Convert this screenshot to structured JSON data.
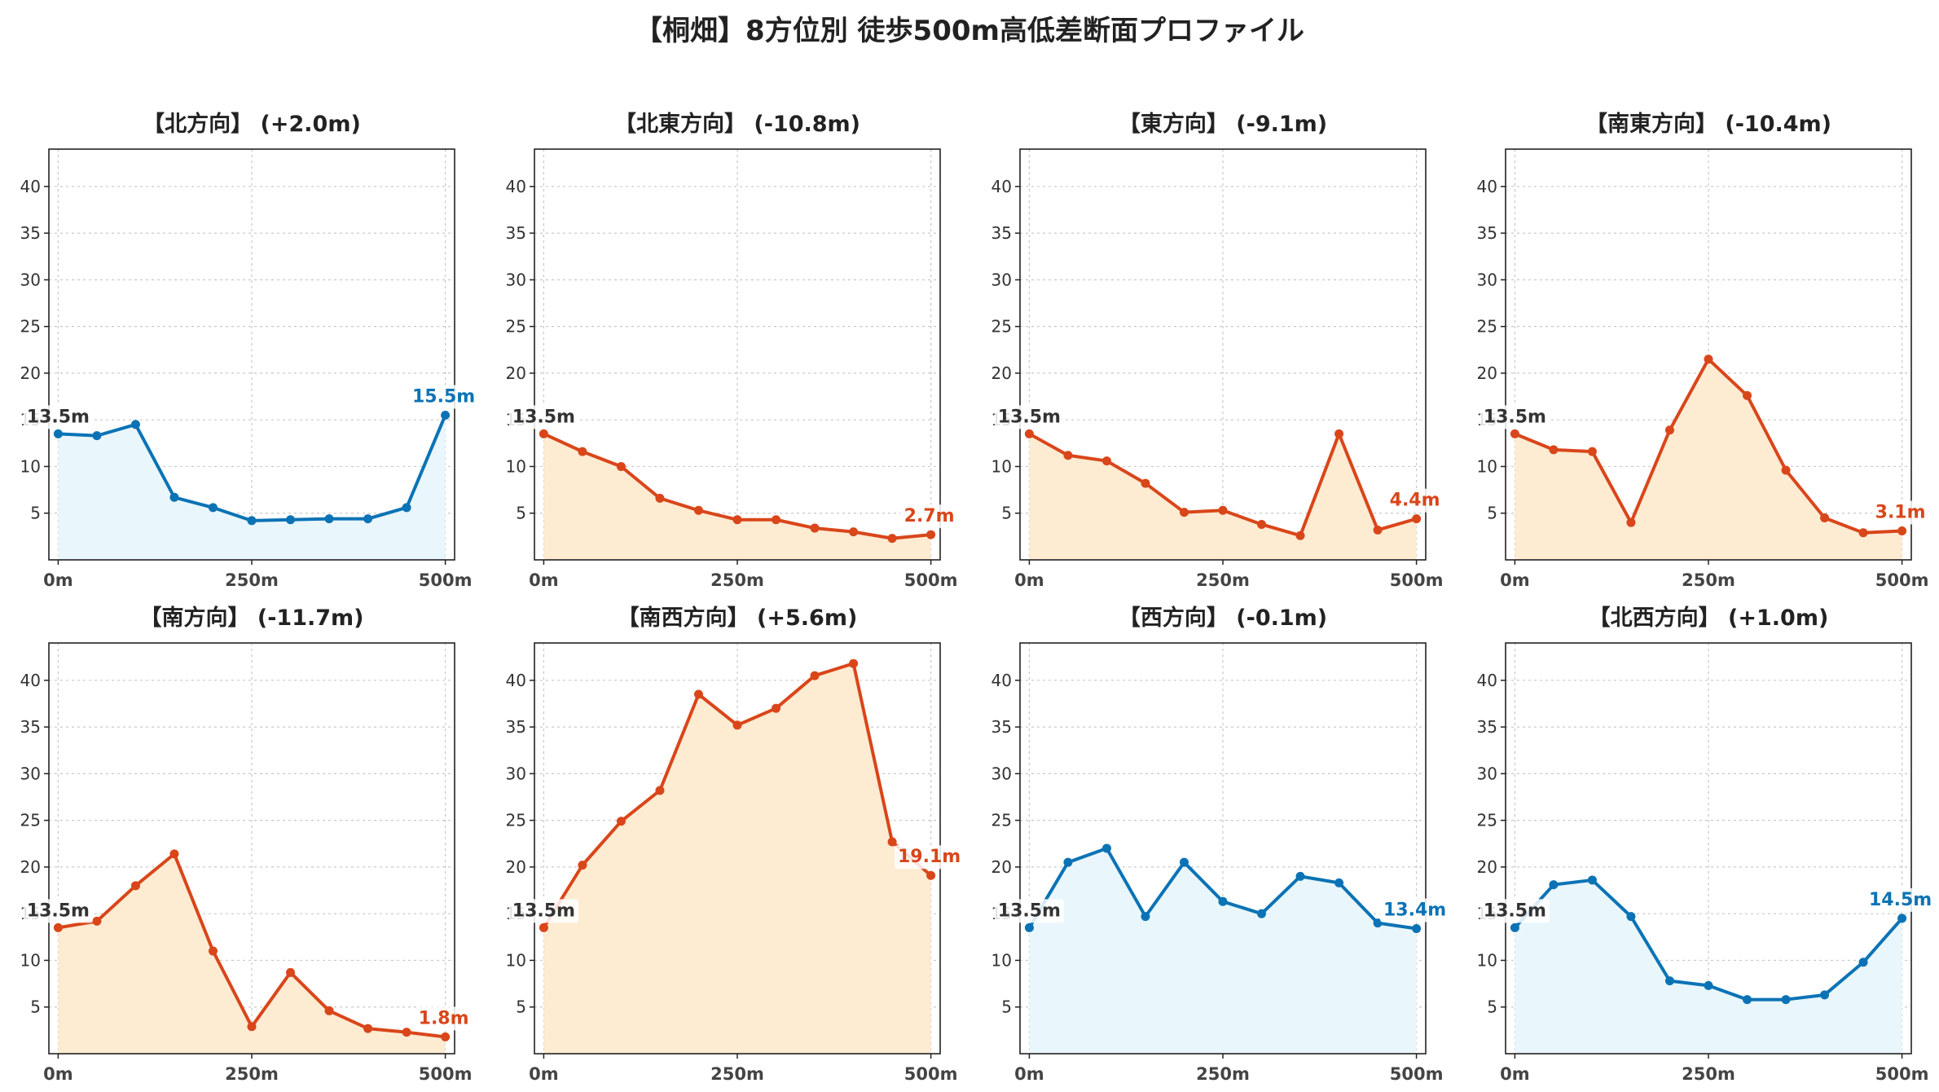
{
  "title": "【桐畑】8方位別 徒歩500m高低差断面プロファイル",
  "colors": {
    "up": "#0b73b5",
    "down": "#d9461a",
    "fill_up": "#e9f6fb",
    "fill_down": "#fdebd2",
    "start_label": "#333333"
  },
  "chart_data": [
    {
      "type": "line",
      "title": "【北方向】 (+2.0m)",
      "trend": "up",
      "x": [
        0,
        50,
        100,
        150,
        200,
        250,
        300,
        350,
        400,
        450,
        500
      ],
      "y": [
        13.5,
        13.3,
        14.5,
        6.7,
        5.6,
        4.2,
        4.3,
        4.4,
        4.4,
        5.6,
        15.5
      ],
      "start_label": "13.5m",
      "end_label": "15.5m",
      "xticks": [
        "0m",
        "250m",
        "500m"
      ],
      "yticks": [
        5,
        10,
        15,
        20,
        25,
        30,
        35,
        40
      ],
      "ylim": [
        0,
        44
      ],
      "grid": true
    },
    {
      "type": "line",
      "title": "【北東方向】 (-10.8m)",
      "trend": "down",
      "x": [
        0,
        50,
        100,
        150,
        200,
        250,
        300,
        350,
        400,
        450,
        500
      ],
      "y": [
        13.5,
        11.6,
        10.0,
        6.6,
        5.3,
        4.3,
        4.3,
        3.4,
        3.0,
        2.3,
        2.7
      ],
      "start_label": "13.5m",
      "end_label": "2.7m",
      "xticks": [
        "0m",
        "250m",
        "500m"
      ],
      "yticks": [
        5,
        10,
        15,
        20,
        25,
        30,
        35,
        40
      ],
      "ylim": [
        0,
        44
      ],
      "grid": true
    },
    {
      "type": "line",
      "title": "【東方向】 (-9.1m)",
      "trend": "down",
      "x": [
        0,
        50,
        100,
        150,
        200,
        250,
        300,
        350,
        400,
        450,
        500
      ],
      "y": [
        13.5,
        11.2,
        10.6,
        8.2,
        5.1,
        5.3,
        3.8,
        2.6,
        13.5,
        3.2,
        4.4
      ],
      "start_label": "13.5m",
      "end_label": "4.4m",
      "xticks": [
        "0m",
        "250m",
        "500m"
      ],
      "yticks": [
        5,
        10,
        15,
        20,
        25,
        30,
        35,
        40
      ],
      "ylim": [
        0,
        44
      ],
      "grid": true
    },
    {
      "type": "line",
      "title": "【南東方向】 (-10.4m)",
      "trend": "down",
      "x": [
        0,
        50,
        100,
        150,
        200,
        250,
        300,
        350,
        400,
        450,
        500
      ],
      "y": [
        13.5,
        11.8,
        11.6,
        4.0,
        13.9,
        21.5,
        17.6,
        9.6,
        4.5,
        2.9,
        3.1
      ],
      "start_label": "13.5m",
      "end_label": "3.1m",
      "xticks": [
        "0m",
        "250m",
        "500m"
      ],
      "yticks": [
        5,
        10,
        15,
        20,
        25,
        30,
        35,
        40
      ],
      "ylim": [
        0,
        44
      ],
      "grid": true
    },
    {
      "type": "line",
      "title": "【南方向】 (-11.7m)",
      "trend": "down",
      "x": [
        0,
        50,
        100,
        150,
        200,
        250,
        300,
        350,
        400,
        450,
        500
      ],
      "y": [
        13.5,
        14.2,
        18.0,
        21.4,
        11.0,
        2.9,
        8.7,
        4.6,
        2.7,
        2.3,
        1.8
      ],
      "start_label": "13.5m",
      "end_label": "1.8m",
      "xticks": [
        "0m",
        "250m",
        "500m"
      ],
      "yticks": [
        5,
        10,
        15,
        20,
        25,
        30,
        35,
        40
      ],
      "ylim": [
        0,
        44
      ],
      "grid": true
    },
    {
      "type": "line",
      "title": "【南西方向】 (+5.6m)",
      "trend": "down",
      "x": [
        0,
        50,
        100,
        150,
        200,
        250,
        300,
        350,
        400,
        450,
        500
      ],
      "y": [
        13.5,
        20.2,
        24.9,
        28.2,
        38.5,
        35.2,
        37.0,
        40.5,
        41.8,
        22.7,
        19.1
      ],
      "start_label": "13.5m",
      "end_label": "19.1m",
      "xticks": [
        "0m",
        "250m",
        "500m"
      ],
      "yticks": [
        5,
        10,
        15,
        20,
        25,
        30,
        35,
        40
      ],
      "ylim": [
        0,
        44
      ],
      "grid": true
    },
    {
      "type": "line",
      "title": "【西方向】 (-0.1m)",
      "trend": "up",
      "x": [
        0,
        50,
        100,
        150,
        200,
        250,
        300,
        350,
        400,
        450,
        500
      ],
      "y": [
        13.5,
        20.5,
        22.0,
        14.7,
        20.5,
        16.3,
        15.0,
        19.0,
        18.3,
        14.0,
        13.4
      ],
      "start_label": "13.5m",
      "end_label": "13.4m",
      "xticks": [
        "0m",
        "250m",
        "500m"
      ],
      "yticks": [
        5,
        10,
        15,
        20,
        25,
        30,
        35,
        40
      ],
      "ylim": [
        0,
        44
      ],
      "grid": true
    },
    {
      "type": "line",
      "title": "【北西方向】 (+1.0m)",
      "trend": "up",
      "x": [
        0,
        50,
        100,
        150,
        200,
        250,
        300,
        350,
        400,
        450,
        500
      ],
      "y": [
        13.5,
        18.1,
        18.6,
        14.7,
        7.8,
        7.3,
        5.8,
        5.8,
        6.3,
        9.8,
        14.5
      ],
      "start_label": "13.5m",
      "end_label": "14.5m",
      "xticks": [
        "0m",
        "250m",
        "500m"
      ],
      "yticks": [
        5,
        10,
        15,
        20,
        25,
        30,
        35,
        40
      ],
      "ylim": [
        0,
        44
      ],
      "grid": true
    }
  ]
}
